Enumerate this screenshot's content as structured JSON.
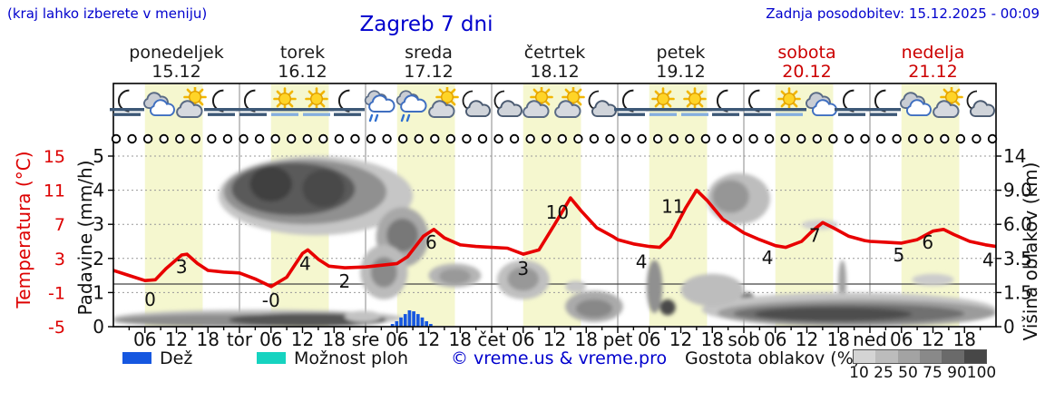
{
  "header": {
    "hint": "(kraj lahko izberete v meniju)",
    "title": "Zagreb 7 dni",
    "updated": "Zadnja posodobitev: 15.12.2025 - 00:09"
  },
  "days": [
    {
      "name": "ponedeljek",
      "date": "15.12",
      "color": "#1a1a1a"
    },
    {
      "name": "torek",
      "date": "16.12",
      "color": "#1a1a1a"
    },
    {
      "name": "sreda",
      "date": "17.12",
      "color": "#1a1a1a"
    },
    {
      "name": "četrtek",
      "date": "18.12",
      "color": "#1a1a1a"
    },
    {
      "name": "petek",
      "date": "19.12",
      "color": "#1a1a1a"
    },
    {
      "name": "sobota",
      "date": "20.12",
      "color": "#cc0000"
    },
    {
      "name": "nedelja",
      "date": "21.12",
      "color": "#cc0000"
    }
  ],
  "axes": {
    "temp_label": "Temperatura (°C)",
    "temp_ticks": [
      "15",
      "11",
      "7",
      "3",
      "-1",
      "-5"
    ],
    "precip_label": "Padavine (mm/h)",
    "precip_ticks": [
      "5",
      "4",
      "3",
      "2",
      "1",
      "0"
    ],
    "cloud_label": "Višina oblakov (km)",
    "cloud_ticks": [
      "14",
      "9.0",
      "6.0",
      "3.5",
      "1.5",
      "0"
    ],
    "hour_ticks": [
      {
        "h": 6,
        "label": "06"
      },
      {
        "h": 12,
        "label": "12"
      },
      {
        "h": 18,
        "label": "18"
      },
      {
        "h": 24,
        "label": "tor"
      },
      {
        "h": 30,
        "label": "06"
      },
      {
        "h": 36,
        "label": "12"
      },
      {
        "h": 42,
        "label": "18"
      },
      {
        "h": 48,
        "label": "sre"
      },
      {
        "h": 54,
        "label": "06"
      },
      {
        "h": 60,
        "label": "12"
      },
      {
        "h": 66,
        "label": "18"
      },
      {
        "h": 72,
        "label": "čet"
      },
      {
        "h": 78,
        "label": "06"
      },
      {
        "h": 84,
        "label": "12"
      },
      {
        "h": 90,
        "label": "18"
      },
      {
        "h": 96,
        "label": "pet"
      },
      {
        "h": 102,
        "label": "06"
      },
      {
        "h": 108,
        "label": "12"
      },
      {
        "h": 114,
        "label": "18"
      },
      {
        "h": 120,
        "label": "sob"
      },
      {
        "h": 126,
        "label": "06"
      },
      {
        "h": 132,
        "label": "12"
      },
      {
        "h": 138,
        "label": "18"
      },
      {
        "h": 144,
        "label": "ned"
      },
      {
        "h": 150,
        "label": "06"
      },
      {
        "h": 156,
        "label": "12"
      },
      {
        "h": 162,
        "label": "18"
      }
    ]
  },
  "legend": {
    "rain_label": "Dež",
    "rain_color": "#1657e0",
    "showers_label": "Možnost ploh",
    "showers_color": "#16d3c0",
    "copyright": "© vreme.us & vreme.pro",
    "cloud_density_label": "Gostota oblakov (%)",
    "density_ticks": [
      "10",
      "25",
      "50",
      "75",
      "90",
      "100"
    ],
    "density_colors": [
      "#d4d4d4",
      "#bcbcbc",
      "#a3a3a3",
      "#898989",
      "#6a6a6a",
      "#474747"
    ]
  },
  "icons": [
    "moon-fog",
    "clouds",
    "sun-cloud",
    "moon-fog",
    "moon-fog",
    "sun-fog",
    "sun-fog",
    "moon-fog",
    "cloud-rain",
    "cloud-rain",
    "sun-cloud",
    "moon-cloud",
    "moon-cloud",
    "sun-cloud",
    "sun-cloud",
    "moon-cloud",
    "moon-fog",
    "sun-fog",
    "sun-fog",
    "moon-fog",
    "moon-fog",
    "sun-fog",
    "clouds",
    "moon-fog",
    "moon-fog",
    "clouds",
    "sun-cloud",
    "moon-cloud"
  ],
  "moon_row": {
    "count": 56,
    "phase": "open-circle"
  },
  "chart_data": {
    "type": "line",
    "title": "Zagreb 7 dni",
    "x_unit": "hours from 15.12 00:00, 7 days (0-168)",
    "ylabel_left": "Temperatura (°C) / Padavine (mm/h)",
    "ylabel_right": "Višina oblakov (km)",
    "temp_axis_range": [
      -5,
      15
    ],
    "precip_axis_range": [
      0,
      5
    ],
    "cloud_axis_ticks_km": [
      0,
      1.5,
      3.5,
      6.0,
      9.0,
      14
    ],
    "zero_degree_line": true,
    "daylight_band_color": "#f5f7cf",
    "temperature": {
      "color": "#e80000",
      "points": [
        [
          0,
          1.6
        ],
        [
          3,
          1.0
        ],
        [
          6,
          0.4
        ],
        [
          8,
          0.5
        ],
        [
          10,
          1.8
        ],
        [
          13,
          3.4
        ],
        [
          14,
          3.5
        ],
        [
          16,
          2.4
        ],
        [
          18,
          1.6
        ],
        [
          21,
          1.4
        ],
        [
          24,
          1.3
        ],
        [
          27,
          0.6
        ],
        [
          30,
          -0.3
        ],
        [
          33,
          0.8
        ],
        [
          36,
          3.6
        ],
        [
          37,
          4.0
        ],
        [
          39,
          2.9
        ],
        [
          41,
          2.1
        ],
        [
          44,
          1.9
        ],
        [
          48,
          2.0
        ],
        [
          51,
          2.2
        ],
        [
          54,
          2.4
        ],
        [
          56,
          3.2
        ],
        [
          59,
          5.6
        ],
        [
          61,
          6.4
        ],
        [
          63,
          5.4
        ],
        [
          66,
          4.6
        ],
        [
          69,
          4.4
        ],
        [
          72,
          4.3
        ],
        [
          75,
          4.2
        ],
        [
          78,
          3.5
        ],
        [
          81,
          4.0
        ],
        [
          84,
          7.0
        ],
        [
          87,
          10.1
        ],
        [
          89,
          8.6
        ],
        [
          92,
          6.6
        ],
        [
          95,
          5.6
        ],
        [
          96,
          5.2
        ],
        [
          99,
          4.7
        ],
        [
          102,
          4.4
        ],
        [
          104,
          4.3
        ],
        [
          106,
          5.5
        ],
        [
          109,
          9.0
        ],
        [
          111,
          11.0
        ],
        [
          113,
          9.8
        ],
        [
          116,
          7.6
        ],
        [
          119,
          6.4
        ],
        [
          120,
          6.0
        ],
        [
          123,
          5.2
        ],
        [
          126,
          4.5
        ],
        [
          128,
          4.3
        ],
        [
          131,
          5.0
        ],
        [
          133,
          6.2
        ],
        [
          135,
          7.2
        ],
        [
          137,
          6.6
        ],
        [
          140,
          5.6
        ],
        [
          143,
          5.1
        ],
        [
          144,
          5.0
        ],
        [
          147,
          4.9
        ],
        [
          150,
          4.8
        ],
        [
          153,
          5.2
        ],
        [
          156,
          6.2
        ],
        [
          158,
          6.4
        ],
        [
          160,
          5.8
        ],
        [
          163,
          5.0
        ],
        [
          166,
          4.6
        ],
        [
          168,
          4.4
        ]
      ],
      "labels": [
        {
          "text": "0",
          "hour": 7,
          "temp": -1.9
        },
        {
          "text": "3",
          "hour": 13,
          "temp": 1.9
        },
        {
          "text": "-0",
          "hour": 30,
          "temp": -2.0
        },
        {
          "text": "4",
          "hour": 36.5,
          "temp": 2.3
        },
        {
          "text": "2",
          "hour": 44,
          "temp": 0.2
        },
        {
          "text": "6",
          "hour": 60.5,
          "temp": 4.8
        },
        {
          "text": "3",
          "hour": 78,
          "temp": 1.7
        },
        {
          "text": "10",
          "hour": 84.5,
          "temp": 8.3
        },
        {
          "text": "4",
          "hour": 100.5,
          "temp": 2.5
        },
        {
          "text": "11",
          "hour": 106.5,
          "temp": 9.0
        },
        {
          "text": "4",
          "hour": 124.5,
          "temp": 3.0
        },
        {
          "text": "7",
          "hour": 133.5,
          "temp": 5.6
        },
        {
          "text": "5",
          "hour": 149.5,
          "temp": 3.3
        },
        {
          "text": "6",
          "hour": 155,
          "temp": 4.8
        },
        {
          "text": "4",
          "hour": 166.5,
          "temp": 2.7
        }
      ]
    },
    "rain": {
      "color": "#1657e0",
      "start_hour": 52.8,
      "bar_hours": 0.81,
      "values_mm_h": [
        0.08,
        0.16,
        0.27,
        0.37,
        0.48,
        0.45,
        0.37,
        0.27,
        0.16,
        0.08
      ]
    },
    "cloud_regions": [
      {
        "h": [
          20,
          57
        ],
        "km": [
          5.2,
          14
        ],
        "fill": "#c6c6c6"
      },
      {
        "h": [
          21,
          52
        ],
        "km": [
          6,
          13.5
        ],
        "fill": "#909090"
      },
      {
        "h": [
          22.5,
          46
        ],
        "km": [
          6.8,
          13
        ],
        "fill": "#5a5a5a"
      },
      {
        "h": [
          26,
          34
        ],
        "km": [
          8,
          12.5
        ],
        "fill": "#404040"
      },
      {
        "h": [
          36,
          44
        ],
        "km": [
          7.5,
          12
        ],
        "fill": "#4a4a4a"
      },
      {
        "h": [
          50,
          60
        ],
        "km": [
          3,
          7.5
        ],
        "fill": "#a8a8a8"
      },
      {
        "h": [
          52,
          58
        ],
        "km": [
          4,
          6.5
        ],
        "fill": "#787878"
      },
      {
        "h": [
          47,
          56
        ],
        "km": [
          1.2,
          4.5
        ],
        "fill": "#bbbbbb"
      },
      {
        "h": [
          49,
          54
        ],
        "km": [
          1.8,
          3.6
        ],
        "fill": "#8a8a8a"
      },
      {
        "h": [
          60,
          70
        ],
        "km": [
          1.8,
          3.2
        ],
        "fill": "#b5b5b5"
      },
      {
        "h": [
          62,
          68
        ],
        "km": [
          2,
          2.9
        ],
        "fill": "#999999"
      },
      {
        "h": [
          73,
          83
        ],
        "km": [
          1.2,
          3.4
        ],
        "fill": "#c0c0c0"
      },
      {
        "h": [
          75,
          81
        ],
        "km": [
          1.6,
          3.0
        ],
        "fill": "#989898"
      },
      {
        "h": [
          86,
          97
        ],
        "km": [
          0.2,
          1.6
        ],
        "fill": "#aaaaaa"
      },
      {
        "h": [
          88,
          95
        ],
        "km": [
          0.4,
          1.2
        ],
        "fill": "#888888"
      },
      {
        "h": [
          101.5,
          104.5
        ],
        "km": [
          0.6,
          3.4
        ],
        "fill": "#909090"
      },
      {
        "h": [
          104,
          107
        ],
        "km": [
          0.5,
          1.2
        ],
        "fill": "#4a4a4a"
      },
      {
        "h": [
          113,
          125
        ],
        "km": [
          6,
          11.5
        ],
        "fill": "#bdbdbd"
      },
      {
        "h": [
          114,
          121
        ],
        "km": [
          7,
          10.5
        ],
        "fill": "#969696"
      },
      {
        "h": [
          131,
          138
        ],
        "km": [
          5.6,
          6.4
        ],
        "fill": "#cfcfcf"
      },
      {
        "h": [
          119,
          122.5
        ],
        "km": [
          0.4,
          1.5
        ],
        "fill": "#6a6a6a"
      },
      {
        "h": [
          138,
          139.5
        ],
        "km": [
          1,
          3.4
        ],
        "fill": "#a0a0a0"
      },
      {
        "h": [
          0,
          55
        ],
        "km": [
          0,
          0.75
        ],
        "fill": "#bdbdbd"
      },
      {
        "h": [
          0,
          44
        ],
        "km": [
          0,
          0.55
        ],
        "fill": "#8d8d8d"
      },
      {
        "h": [
          22,
          52
        ],
        "km": [
          0,
          0.6
        ],
        "fill": "#555555"
      },
      {
        "h": [
          44,
          51
        ],
        "km": [
          0.2,
          0.7
        ],
        "fill": "#c2c2c2"
      },
      {
        "h": [
          112,
          168
        ],
        "km": [
          0,
          1.5
        ],
        "fill": "#c4c4c4"
      },
      {
        "h": [
          115,
          168
        ],
        "km": [
          0,
          1.2
        ],
        "fill": "#9b9b9b"
      },
      {
        "h": [
          118,
          162
        ],
        "km": [
          0.15,
          1.0
        ],
        "fill": "#6f6f6f"
      },
      {
        "h": [
          122,
          152
        ],
        "km": [
          0.25,
          0.85
        ],
        "fill": "#4e4e4e"
      },
      {
        "h": [
          108,
          120
        ],
        "km": [
          0.9,
          2.6
        ],
        "fill": "#bdbdbd"
      },
      {
        "h": [
          152,
          160
        ],
        "km": [
          1.9,
          2.6
        ],
        "fill": "#cccccc"
      },
      {
        "h": [
          86,
          90
        ],
        "km": [
          1.5,
          2.2
        ],
        "fill": "#c6c6c6"
      }
    ]
  }
}
